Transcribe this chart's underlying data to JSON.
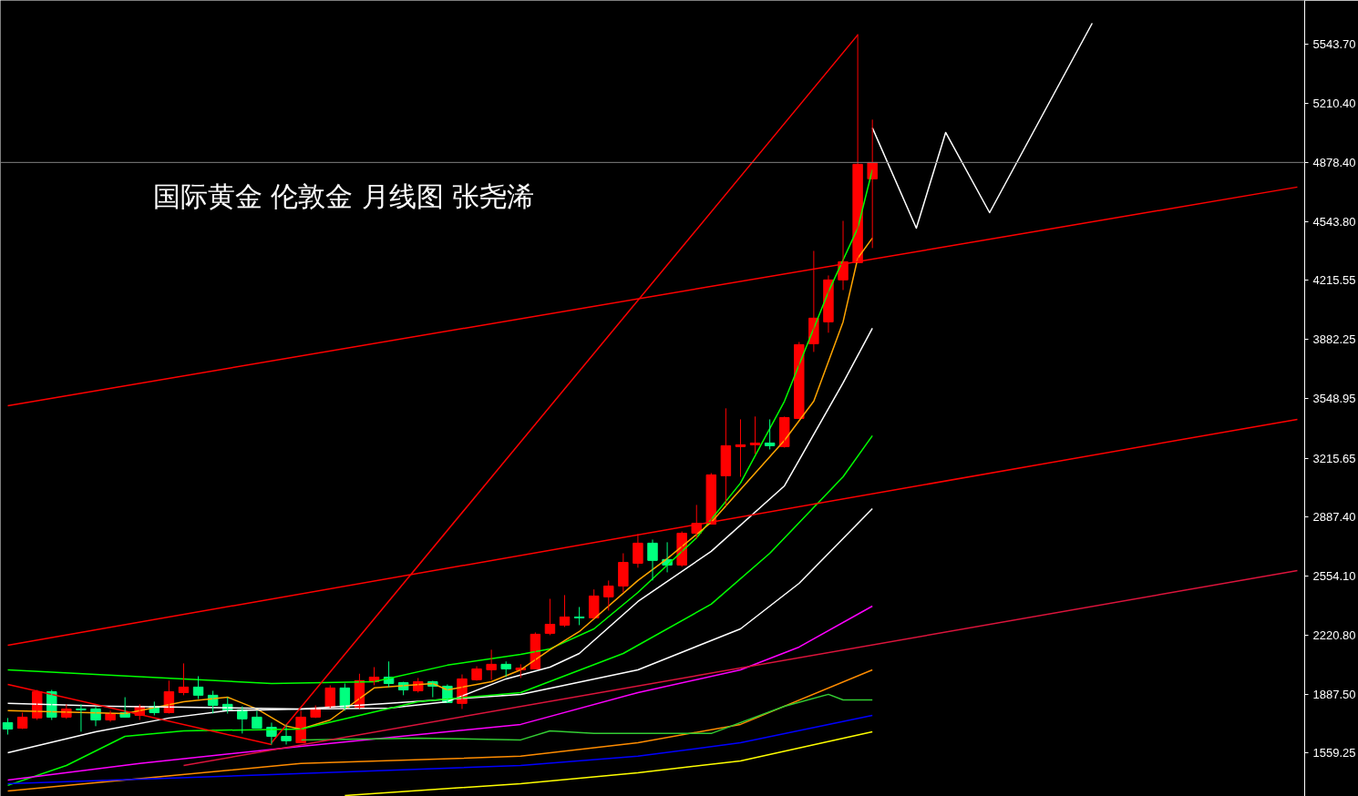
{
  "chart_data": {
    "type": "candlestick",
    "title": "国际黄金 伦敦金  月线图 张尧浠",
    "categories": [
      null,
      null,
      null,
      null,
      null,
      null,
      null,
      null,
      null,
      null,
      null,
      null,
      null,
      null,
      null,
      null,
      null,
      null,
      null,
      null,
      null,
      null,
      null,
      null,
      null,
      null,
      null,
      null,
      null,
      null,
      null,
      null,
      null,
      null,
      null,
      null,
      null,
      null,
      null,
      null,
      null,
      null,
      null,
      null,
      null,
      null,
      null,
      null,
      null,
      null,
      null,
      null,
      null,
      null,
      null,
      null,
      null,
      null,
      null,
      null,
      null,
      null,
      null,
      null,
      null,
      null,
      null,
      null,
      null,
      null,
      null,
      null,
      null,
      null,
      null,
      null,
      null,
      null,
      null,
      null,
      null,
      null,
      null,
      null,
      null,
      null,
      null,
      null,
      null
    ],
    "ohlc": [
      [
        1729,
        1755,
        1662,
        1693
      ],
      [
        1698,
        1785,
        1693,
        1760
      ],
      [
        1755,
        1913,
        1744,
        1903
      ],
      [
        1903,
        1913,
        1744,
        1760
      ],
      [
        1760,
        1832,
        1750,
        1806
      ],
      [
        1806,
        1832,
        1678,
        1801
      ],
      [
        1806,
        1821,
        1709,
        1744
      ],
      [
        1744,
        1796,
        1734,
        1780
      ],
      [
        1785,
        1872,
        1760,
        1760
      ],
      [
        1770,
        1832,
        1744,
        1821
      ],
      [
        1821,
        1847,
        1770,
        1785
      ],
      [
        1785,
        1965,
        1780,
        1903
      ],
      [
        1898,
        2062,
        1883,
        1929
      ],
      [
        1929,
        1990,
        1862,
        1883
      ],
      [
        1883,
        1908,
        1780,
        1826
      ],
      [
        1832,
        1872,
        1780,
        1796
      ],
      [
        1801,
        1821,
        1668,
        1750
      ],
      [
        1760,
        1796,
        1698,
        1698
      ],
      [
        1703,
        1729,
        1606,
        1652
      ],
      [
        1652,
        1719,
        1606,
        1627
      ],
      [
        1616,
        1796,
        1616,
        1760
      ],
      [
        1760,
        1826,
        1755,
        1811
      ],
      [
        1816,
        1939,
        1811,
        1924
      ],
      [
        1924,
        1949,
        1796,
        1816
      ],
      [
        1816,
        2004,
        1806,
        1965
      ],
      [
        1959,
        2041,
        1939,
        1985
      ],
      [
        1985,
        2073,
        1929,
        1949
      ],
      [
        1954,
        1959,
        1883,
        1913
      ],
      [
        1908,
        1980,
        1898,
        1959
      ],
      [
        1959,
        1965,
        1872,
        1934
      ],
      [
        1934,
        1944,
        1842,
        1842
      ],
      [
        1837,
        2000,
        1806,
        1975
      ],
      [
        1970,
        2046,
        1965,
        2031
      ],
      [
        2026,
        2139,
        1970,
        2057
      ],
      [
        2057,
        2073,
        1985,
        2031
      ],
      [
        2026,
        2057,
        1980,
        2036
      ],
      [
        2031,
        2236,
        2031,
        2226
      ],
      [
        2231,
        2425,
        2221,
        2282
      ],
      [
        2277,
        2446,
        2267,
        2323
      ],
      [
        2323,
        2379,
        2277,
        2318
      ],
      [
        2318,
        2478,
        2313,
        2441
      ],
      [
        2436,
        2528,
        2359,
        2497
      ],
      [
        2497,
        2681,
        2461,
        2630
      ],
      [
        2625,
        2789,
        2600,
        2738
      ],
      [
        2738,
        2758,
        2528,
        2641
      ],
      [
        2646,
        2743,
        2574,
        2615
      ],
      [
        2615,
        2804,
        2605,
        2794
      ],
      [
        2794,
        2953,
        2763,
        2850
      ],
      [
        2845,
        3132,
        2845,
        3122
      ],
      [
        3117,
        3496,
        2948,
        3286
      ],
      [
        3281,
        3434,
        3111,
        3291
      ],
      [
        3291,
        3450,
        3240,
        3301
      ],
      [
        3301,
        3434,
        3265,
        3286
      ],
      [
        3281,
        3450,
        3275,
        3444
      ],
      [
        3439,
        3869,
        3439,
        3854
      ],
      [
        3859,
        4381,
        3813,
        4003
      ],
      [
        3982,
        4243,
        3921,
        4218
      ],
      [
        4218,
        4550,
        4161,
        4320
      ],
      [
        4315,
        5600,
        4315,
        4868
      ],
      [
        4786,
        5119,
        4397,
        4878
      ],
      null,
      null,
      null,
      null,
      null,
      null,
      null,
      null,
      null,
      null,
      null,
      null,
      null,
      null,
      null,
      null,
      null,
      null,
      null,
      null,
      null,
      null,
      null,
      null,
      null,
      null,
      null,
      null,
      null
    ],
    "colors": [
      "#00ff7f",
      "#ff0000",
      "#ff0000",
      "#00ff7f",
      "#ff0000",
      "#00ff7f",
      "#00ff7f",
      "#ff0000",
      "#00ff7f",
      "#ff0000",
      "#00ff7f",
      "#ff0000",
      "#ff0000",
      "#00ff7f",
      "#00ff7f",
      "#00ff7f",
      "#00ff7f",
      "#00ff7f",
      "#00ff7f",
      "#00ff7f",
      "#ff0000",
      "#ff0000",
      "#ff0000",
      "#00ff7f",
      "#ff0000",
      "#ff0000",
      "#00ff7f",
      "#00ff7f",
      "#ff0000",
      "#00ff7f",
      "#00ff7f",
      "#ff0000",
      "#ff0000",
      "#ff0000",
      "#00ff7f",
      "#ff0000",
      "#ff0000",
      "#ff0000",
      "#ff0000",
      "#00ff7f",
      "#ff0000",
      "#ff0000",
      "#ff0000",
      "#ff0000",
      "#00ff7f",
      "#00ff7f",
      "#ff0000",
      "#ff0000",
      "#ff0000",
      "#ff0000",
      "#ff0000",
      "#ff0000",
      "#00ff7f",
      "#ff0000",
      "#ff0000",
      "#ff0000",
      "#ff0000",
      "#ff0000",
      "#ff0000",
      "#ff0000",
      null,
      null,
      null,
      null,
      null,
      null,
      null,
      null,
      null,
      null,
      null,
      null,
      null,
      null,
      null,
      null,
      null,
      null,
      null,
      null,
      null,
      null,
      null,
      null,
      null,
      null,
      null,
      null,
      null
    ],
    "series": [
      {
        "type": "line",
        "color": "#00ff00",
        "values": [
          2026,
          null,
          null,
          null,
          null,
          null,
          2000,
          null,
          null,
          null,
          null,
          null,
          1975,
          null,
          null,
          null,
          null,
          null,
          1949,
          null,
          null,
          null,
          null,
          null,
          null,
          1959,
          null,
          null,
          null,
          null,
          2052,
          null,
          null,
          null,
          null,
          2113,
          null,
          2144,
          null,
          null,
          2256,
          null,
          null,
          2461,
          null,
          null,
          null,
          2768,
          null,
          null,
          3076,
          null,
          null,
          3536,
          null,
          null,
          4151,
          null,
          4509,
          4837,
          null,
          null,
          null,
          null,
          null,
          null,
          null,
          null,
          null,
          null,
          null,
          null,
          null,
          null,
          null,
          null,
          null,
          null,
          null,
          null,
          null,
          null,
          null,
          null,
          null,
          null,
          null,
          null,
          null
        ]
      },
      {
        "type": "line",
        "color": "#ffa500",
        "values": [
          1796,
          null,
          null,
          null,
          null,
          null,
          null,
          null,
          1780,
          null,
          null,
          null,
          1847,
          null,
          null,
          1872,
          null,
          1806,
          null,
          1709,
          1693,
          null,
          1744,
          null,
          null,
          1924,
          null,
          null,
          null,
          1949,
          1913,
          null,
          null,
          1959,
          null,
          2026,
          null,
          2139,
          null,
          2241,
          null,
          null,
          null,
          2528,
          null,
          2651,
          null,
          null,
          2855,
          null,
          null,
          null,
          null,
          3316,
          null,
          3536,
          null,
          3982,
          4340,
          4453,
          null,
          null,
          null,
          null,
          null,
          null,
          null,
          null,
          null,
          null,
          null,
          null,
          null,
          null,
          null,
          null,
          null,
          null,
          null,
          null,
          null,
          null,
          null,
          null,
          null,
          null,
          null,
          null,
          null
        ]
      },
      {
        "type": "line",
        "color": "#ffffff",
        "values": [
          1837,
          null,
          null,
          null,
          null,
          null,
          null,
          1821,
          null,
          null,
          null,
          null,
          1816,
          null,
          null,
          null,
          null,
          null,
          null,
          null,
          1806,
          null,
          null,
          null,
          null,
          null,
          1811,
          null,
          null,
          null,
          1847,
          null,
          null,
          null,
          1975,
          null,
          null,
          2041,
          null,
          2118,
          null,
          null,
          null,
          2410,
          null,
          null,
          null,
          null,
          2692,
          null,
          null,
          null,
          null,
          3060,
          null,
          null,
          null,
          3639,
          null,
          3946,
          null,
          null,
          null,
          null,
          null,
          null,
          null,
          null,
          null,
          null,
          null,
          null,
          null,
          null,
          null,
          null,
          null,
          null,
          null,
          null,
          null,
          null,
          null,
          null,
          null,
          null,
          null,
          null,
          null
        ]
      },
      {
        "type": "line",
        "color": "#ffffff",
        "values": [
          1560,
          null,
          null,
          null,
          null,
          null,
          1678,
          null,
          null,
          null,
          null,
          1755,
          null,
          null,
          null,
          1796,
          null,
          null,
          null,
          null,
          1806,
          null,
          null,
          null,
          null,
          null,
          1837,
          null,
          null,
          null,
          null,
          null,
          null,
          null,
          null,
          1888,
          null,
          null,
          null,
          null,
          null,
          null,
          null,
          2026,
          null,
          null,
          null,
          null,
          null,
          null,
          2256,
          null,
          null,
          null,
          2512,
          null,
          null,
          null,
          null,
          2932,
          null,
          null,
          null,
          null,
          null,
          null,
          null,
          null,
          null,
          null,
          null,
          null,
          null,
          null,
          null,
          null,
          null,
          null,
          null,
          null,
          null,
          null,
          null,
          null,
          null,
          null,
          null,
          null,
          null
        ]
      },
      {
        "type": "line",
        "color": "#00ff00",
        "values": [
          1376,
          null,
          null,
          null,
          1488,
          null,
          null,
          null,
          1652,
          null,
          null,
          null,
          1683,
          null,
          null,
          null,
          null,
          null,
          null,
          null,
          1693,
          null,
          null,
          null,
          null,
          null,
          null,
          null,
          1847,
          null,
          null,
          null,
          null,
          null,
          null,
          1898,
          null,
          null,
          null,
          null,
          null,
          null,
          2118,
          null,
          null,
          null,
          null,
          null,
          2395,
          null,
          null,
          null,
          2681,
          null,
          null,
          null,
          null,
          3111,
          null,
          3342,
          null,
          null,
          null,
          null,
          null,
          null,
          null,
          null,
          null,
          null,
          null,
          null,
          null,
          null,
          null,
          null,
          null,
          null,
          null,
          null,
          null,
          null,
          null,
          null,
          null,
          null,
          null,
          null,
          null
        ]
      },
      {
        "type": "line",
        "color": "#ff00ff",
        "values": [
          1406,
          null,
          null,
          null,
          null,
          null,
          null,
          null,
          null,
          1499,
          null,
          null,
          null,
          null,
          null,
          null,
          null,
          null,
          null,
          null,
          1596,
          null,
          null,
          null,
          null,
          null,
          null,
          null,
          null,
          null,
          null,
          null,
          null,
          null,
          null,
          1719,
          null,
          null,
          null,
          null,
          null,
          null,
          null,
          1898,
          null,
          null,
          null,
          null,
          null,
          null,
          2026,
          null,
          null,
          null,
          2154,
          null,
          null,
          null,
          null,
          2384,
          null,
          null,
          null,
          null,
          null,
          null,
          null,
          null,
          null,
          null,
          null,
          null,
          null,
          null,
          null,
          null,
          null,
          null,
          null,
          null,
          null,
          null,
          null,
          null,
          null,
          null,
          null,
          null,
          null
        ]
      },
      {
        "type": "line",
        "color": "#ff8c00",
        "values": [
          1345,
          null,
          null,
          null,
          null,
          null,
          null,
          null,
          null,
          null,
          null,
          null,
          null,
          null,
          null,
          null,
          null,
          null,
          null,
          null,
          1499,
          null,
          null,
          null,
          null,
          null,
          null,
          null,
          null,
          null,
          null,
          null,
          null,
          null,
          null,
          1540,
          null,
          null,
          null,
          null,
          null,
          null,
          null,
          1616,
          null,
          null,
          null,
          null,
          null,
          null,
          1719,
          null,
          null,
          null,
          null,
          null,
          null,
          null,
          null,
          2026,
          null,
          null,
          null,
          null,
          null,
          null,
          null,
          null,
          null,
          null,
          null,
          null,
          null,
          null,
          null,
          null,
          null,
          null,
          null,
          null,
          null,
          null,
          null,
          null,
          null,
          null,
          null,
          null,
          null
        ]
      },
      {
        "type": "line",
        "color": "#33cc33",
        "values": [
          null,
          null,
          null,
          null,
          null,
          null,
          null,
          null,
          null,
          null,
          null,
          null,
          null,
          null,
          null,
          null,
          null,
          null,
          null,
          null,
          1632,
          null,
          null,
          null,
          null,
          null,
          null,
          null,
          1642,
          null,
          null,
          null,
          null,
          null,
          null,
          1632,
          null,
          1683,
          null,
          null,
          1668,
          null,
          null,
          null,
          null,
          1668,
          null,
          null,
          1668,
          null,
          null,
          null,
          null,
          1821,
          null,
          null,
          1888,
          1857,
          null,
          1857,
          null,
          null,
          null,
          null,
          null,
          null,
          null,
          null,
          null,
          null,
          null,
          null,
          null,
          null,
          null,
          null,
          null,
          null,
          null,
          null,
          null,
          null,
          null,
          null,
          null,
          null,
          null,
          null,
          null
        ]
      },
      {
        "type": "line",
        "color": "#0000ff",
        "values": [
          1386,
          null,
          null,
          null,
          null,
          null,
          null,
          null,
          null,
          null,
          null,
          null,
          null,
          null,
          null,
          null,
          null,
          null,
          1437,
          null,
          null,
          null,
          null,
          null,
          null,
          null,
          null,
          null,
          null,
          null,
          null,
          null,
          null,
          null,
          null,
          1488,
          null,
          null,
          null,
          null,
          null,
          null,
          null,
          1540,
          null,
          null,
          null,
          null,
          null,
          null,
          1616,
          null,
          null,
          null,
          null,
          null,
          null,
          null,
          null,
          1770,
          null,
          null,
          null,
          null,
          null,
          null,
          null,
          null,
          null,
          null,
          null,
          null,
          null,
          null,
          null,
          null,
          null,
          null,
          null,
          null,
          null,
          null,
          null,
          null,
          null,
          null,
          null,
          null,
          null
        ]
      },
      {
        "type": "line",
        "color": "#ffff00",
        "values": [
          null,
          null,
          null,
          null,
          null,
          null,
          null,
          null,
          null,
          null,
          null,
          null,
          null,
          null,
          null,
          null,
          null,
          null,
          null,
          null,
          null,
          null,
          null,
          1319,
          null,
          null,
          null,
          null,
          null,
          null,
          null,
          null,
          null,
          null,
          null,
          1386,
          null,
          null,
          null,
          null,
          null,
          null,
          null,
          1447,
          null,
          null,
          null,
          null,
          null,
          null,
          1514,
          null,
          null,
          null,
          null,
          null,
          null,
          null,
          null,
          1678,
          null,
          null,
          null,
          null,
          null,
          null,
          null,
          null,
          null,
          null,
          null,
          null,
          null,
          null,
          null,
          null,
          null,
          null,
          null,
          null,
          null,
          null,
          null,
          null,
          null,
          null,
          null,
          null,
          null
        ]
      },
      {
        "type": "line",
        "color": "#ff0000",
        "values": [
          3511,
          null,
          null,
          null,
          null,
          null,
          null,
          null,
          null,
          null,
          null,
          null,
          null,
          null,
          null,
          null,
          null,
          null,
          null,
          null,
          null,
          null,
          null,
          null,
          null,
          null,
          null,
          null,
          null,
          null,
          null,
          null,
          null,
          null,
          null,
          null,
          null,
          null,
          null,
          null,
          null,
          null,
          null,
          null,
          null,
          null,
          null,
          null,
          null,
          null,
          null,
          null,
          null,
          null,
          null,
          null,
          null,
          null,
          null,
          null,
          null,
          null,
          null,
          null,
          null,
          null,
          null,
          null,
          null,
          null,
          null,
          null,
          null,
          null,
          null,
          null,
          null,
          null,
          null,
          null,
          null,
          null,
          null,
          null,
          null,
          null,
          null,
          null,
          4740
        ]
      },
      {
        "type": "line",
        "color": "#ff0000",
        "values": [
          2164,
          null,
          null,
          null,
          null,
          null,
          null,
          null,
          null,
          null,
          null,
          null,
          null,
          null,
          null,
          null,
          null,
          null,
          null,
          null,
          null,
          null,
          null,
          null,
          null,
          null,
          null,
          null,
          null,
          null,
          null,
          null,
          null,
          null,
          null,
          null,
          null,
          null,
          null,
          null,
          null,
          null,
          null,
          null,
          null,
          null,
          null,
          null,
          null,
          null,
          null,
          null,
          null,
          null,
          null,
          null,
          null,
          null,
          null,
          null,
          null,
          null,
          null,
          null,
          null,
          null,
          null,
          null,
          null,
          null,
          null,
          null,
          null,
          null,
          null,
          null,
          null,
          null,
          null,
          null,
          null,
          null,
          null,
          null,
          null,
          null,
          null,
          null,
          3434
        ]
      },
      {
        "type": "line",
        "color": "#dc143c",
        "values": [
          null,
          null,
          null,
          null,
          null,
          null,
          null,
          null,
          null,
          null,
          null,
          null,
          1488,
          null,
          null,
          null,
          null,
          null,
          null,
          null,
          null,
          null,
          null,
          null,
          null,
          null,
          null,
          null,
          null,
          null,
          null,
          null,
          null,
          null,
          null,
          null,
          null,
          null,
          null,
          null,
          null,
          null,
          null,
          null,
          null,
          null,
          null,
          null,
          null,
          null,
          null,
          null,
          null,
          null,
          null,
          null,
          null,
          null,
          null,
          null,
          null,
          null,
          null,
          null,
          null,
          null,
          null,
          null,
          null,
          null,
          null,
          null,
          null,
          null,
          null,
          null,
          null,
          null,
          null,
          null,
          null,
          null,
          null,
          null,
          null,
          null,
          null,
          null,
          2584
        ]
      },
      {
        "type": "line",
        "color": "#ff0000",
        "values": [
          null,
          null,
          null,
          null,
          null,
          null,
          null,
          null,
          null,
          null,
          null,
          null,
          null,
          null,
          null,
          null,
          null,
          null,
          1616,
          null,
          null,
          null,
          null,
          null,
          null,
          null,
          null,
          null,
          null,
          null,
          null,
          null,
          null,
          null,
          null,
          null,
          null,
          null,
          null,
          null,
          null,
          null,
          null,
          null,
          null,
          null,
          null,
          null,
          null,
          null,
          null,
          null,
          null,
          null,
          null,
          null,
          null,
          null,
          5595,
          null,
          null,
          null,
          null,
          null,
          null,
          null,
          null,
          null,
          null,
          null,
          null,
          null,
          null,
          null,
          null,
          null,
          null,
          null,
          null,
          null,
          null,
          null,
          null,
          null,
          null,
          null,
          null,
          null,
          null
        ]
      },
      {
        "type": "line",
        "color": "#ff0000",
        "values": [
          1944,
          null,
          null,
          null,
          null,
          null,
          null,
          null,
          null,
          null,
          null,
          null,
          null,
          null,
          null,
          null,
          null,
          null,
          1606,
          null,
          null,
          null,
          null,
          null,
          null,
          null,
          null,
          null,
          null,
          null,
          null,
          null,
          null,
          null,
          null,
          null,
          null,
          null,
          null,
          null,
          null,
          null,
          null,
          null,
          null,
          null,
          null,
          null,
          null,
          null,
          null,
          null,
          null,
          null,
          null,
          null,
          null,
          null,
          null,
          null,
          null,
          null,
          null,
          null,
          null,
          null,
          null,
          null,
          null,
          null,
          null,
          null,
          null,
          null,
          null,
          null,
          null,
          null,
          null,
          null,
          null,
          null,
          null,
          null,
          null,
          null,
          null,
          null,
          null
        ]
      },
      {
        "type": "line",
        "color": "#ffffff",
        "values": [
          null,
          null,
          null,
          null,
          null,
          null,
          null,
          null,
          null,
          null,
          null,
          null,
          null,
          null,
          null,
          null,
          null,
          null,
          null,
          null,
          null,
          null,
          null,
          null,
          null,
          null,
          null,
          null,
          null,
          null,
          null,
          null,
          null,
          null,
          null,
          null,
          null,
          null,
          null,
          null,
          null,
          null,
          null,
          null,
          null,
          null,
          null,
          null,
          null,
          null,
          null,
          null,
          null,
          null,
          null,
          null,
          null,
          null,
          null,
          5073,
          null,
          null,
          4509,
          null,
          5047,
          null,
          null,
          4596,
          null,
          null,
          null,
          null,
          null,
          null,
          5661,
          null,
          null,
          null,
          null,
          null,
          null,
          null,
          null,
          null,
          null,
          null,
          null,
          null,
          null
        ]
      }
    ],
    "ylim": [
      1314,
      5789
    ],
    "yticks": [
      1559.25,
      {
        "value": 1887.5,
        "label": "1887.50"
      },
      {
        "value": 2220.8,
        "label": "2220.80"
      },
      {
        "value": 2554.1,
        "label": "2554.10"
      },
      {
        "value": 2887.4,
        "label": "2887.40"
      },
      3215.65,
      3548.95,
      3882.25,
      4215.55,
      {
        "value": 4543.8,
        "label": "4543.80"
      },
      {
        "value": 4878.4,
        "label": "4878.40"
      },
      {
        "value": 5210.4,
        "label": "5210.40"
      },
      {
        "value": 5543.7,
        "label": "5543.70"
      }
    ],
    "ref_lines": [
      {
        "axis": "y",
        "value": 4878.4,
        "color": "#808080"
      }
    ],
    "tick_labels": "y",
    "grid": false
  }
}
